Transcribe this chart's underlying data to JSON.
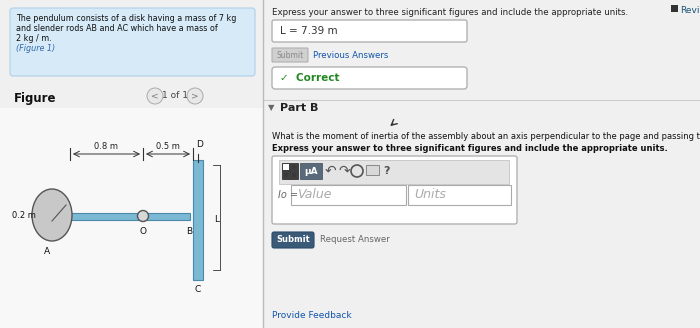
{
  "bg_color": "#e0e0e0",
  "left_panel_bg": "#f5f5f5",
  "info_box_bg": "#d6eaf8",
  "info_box_text_line1": "The pendulum consists of a disk having a mass of 7 kg",
  "info_box_text_line2": "and slender rods AB and AC which have a mass of",
  "info_box_text_line3": "2 kg / m.",
  "info_box_text_line4": "(Figure 1)",
  "figure_label": "Figure",
  "nav_text": "1 of 1",
  "right_panel_bg": "#f0f0f0",
  "review_text": "Review",
  "express_text": "Express your answer to three significant figures and include the appropriate units.",
  "answer_box_text": "L = 7.39 m",
  "previous_answers_text": "Previous Answers",
  "correct_text": "✓  Correct",
  "part_b_text": "Part B",
  "part_b_question": "What is the moment of inertia of the assembly about an axis perpendicular to the page and passing through point O",
  "express_text2": "Express your answer to three significant figures and include the appropriate units.",
  "io_label": "Io =",
  "value_placeholder": "Value",
  "units_placeholder": "Units",
  "submit_btn_text": "Submit",
  "request_answer_text": "Request Answer",
  "provide_feedback_text": "Provide Feedback",
  "dim_08": "0.8 m",
  "dim_05": "0.5 m",
  "dim_02": "0.2 m",
  "label_D": "D",
  "label_L": "L",
  "label_A": "A",
  "label_O": "O",
  "label_B": "B",
  "label_C": "C"
}
